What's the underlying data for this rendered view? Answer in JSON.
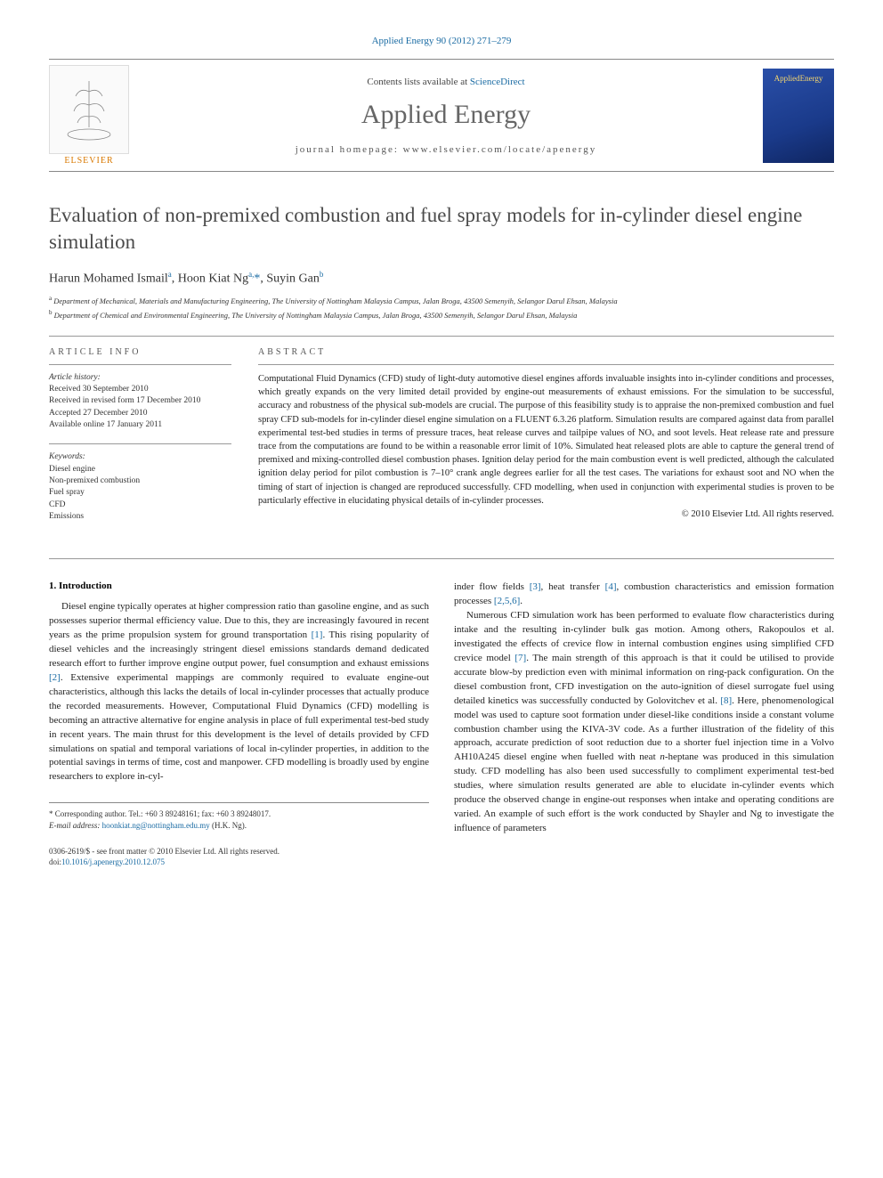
{
  "top_link": "Applied Energy 90 (2012) 271–279",
  "header": {
    "contents_prefix": "Contents lists available at ",
    "contents_link": "ScienceDirect",
    "journal_name": "Applied Energy",
    "homepage_prefix": "journal homepage: ",
    "homepage_url": "www.elsevier.com/locate/apenergy",
    "publisher_name": "ELSEVIER",
    "cover_text": "AppliedEnergy"
  },
  "article": {
    "title": "Evaluation of non-premixed combustion and fuel spray models for in-cylinder diesel engine simulation",
    "authors_html": "Harun Mohamed Ismail<sup>a</sup>, Hoon Kiat Ng<sup>a,</sup><span class=\"ast\">*</span>, Suyin Gan<sup>b</sup>",
    "affiliations": [
      {
        "marker": "a",
        "text": "Department of Mechanical, Materials and Manufacturing Engineering, The University of Nottingham Malaysia Campus, Jalan Broga, 43500 Semenyih, Selangor Darul Ehsan, Malaysia"
      },
      {
        "marker": "b",
        "text": "Department of Chemical and Environmental Engineering, The University of Nottingham Malaysia Campus, Jalan Broga, 43500 Semenyih, Selangor Darul Ehsan, Malaysia"
      }
    ]
  },
  "info": {
    "label": "ARTICLE INFO",
    "history_heading": "Article history:",
    "history": [
      "Received 30 September 2010",
      "Received in revised form 17 December 2010",
      "Accepted 27 December 2010",
      "Available online 17 January 2011"
    ],
    "keywords_heading": "Keywords:",
    "keywords": [
      "Diesel engine",
      "Non-premixed combustion",
      "Fuel spray",
      "CFD",
      "Emissions"
    ]
  },
  "abstract": {
    "label": "ABSTRACT",
    "text": "Computational Fluid Dynamics (CFD) study of light-duty automotive diesel engines affords invaluable insights into in-cylinder conditions and processes, which greatly expands on the very limited detail provided by engine-out measurements of exhaust emissions. For the simulation to be successful, accuracy and robustness of the physical sub-models are crucial. The purpose of this feasibility study is to appraise the non-premixed combustion and fuel spray CFD sub-models for in-cylinder diesel engine simulation on a FLUENT 6.3.26 platform. Simulation results are compared against data from parallel experimental test-bed studies in terms of pressure traces, heat release curves and tailpipe values of NOₓ and soot levels. Heat release rate and pressure trace from the computations are found to be within a reasonable error limit of 10%. Simulated heat released plots are able to capture the general trend of premixed and mixing-controlled diesel combustion phases. Ignition delay period for the main combustion event is well predicted, although the calculated ignition delay period for pilot combustion is 7–10° crank angle degrees earlier for all the test cases. The variations for exhaust soot and NO when the timing of start of injection is changed are reproduced successfully. CFD modelling, when used in conjunction with experimental studies is proven to be particularly effective in elucidating physical details of in-cylinder processes.",
    "copyright": "© 2010 Elsevier Ltd. All rights reserved."
  },
  "intro": {
    "heading": "1. Introduction",
    "left_para": "Diesel engine typically operates at higher compression ratio than gasoline engine, and as such possesses superior thermal efficiency value. Due to this, they are increasingly favoured in recent years as the prime propulsion system for ground transportation <a class=\"cite\">[1]</a>. This rising popularity of diesel vehicles and the increasingly stringent diesel emissions standards demand dedicated research effort to further improve engine output power, fuel consumption and exhaust emissions <a class=\"cite\">[2]</a>. Extensive experimental mappings are commonly required to evaluate engine-out characteristics, although this lacks the details of local in-cylinder processes that actually produce the recorded measurements. However, Computational Fluid Dynamics (CFD) modelling is becoming an attractive alternative for engine analysis in place of full experimental test-bed study in recent years. The main thrust for this development is the level of details provided by CFD simulations on spatial and temporal variations of local in-cylinder properties, in addition to the potential savings in terms of time, cost and manpower. CFD modelling is broadly used by engine researchers to explore in-cyl-",
    "right_top_para": "inder flow fields <a class=\"cite\">[3]</a>, heat transfer <a class=\"cite\">[4]</a>, combustion characteristics and emission formation processes <a class=\"cite\">[2,5,6]</a>.",
    "right_para": "Numerous CFD simulation work has been performed to evaluate flow characteristics during intake and the resulting in-cylinder bulk gas motion. Among others, Rakopoulos et al. investigated the effects of crevice flow in internal combustion engines using simplified CFD crevice model <a class=\"cite\">[7]</a>. The main strength of this approach is that it could be utilised to provide accurate blow-by prediction even with minimal information on ring-pack configuration. On the diesel combustion front, CFD investigation on the auto-ignition of diesel surrogate fuel using detailed kinetics was successfully conducted by Golovitchev et al. <a class=\"cite\">[8]</a>. Here, phenomenological model was used to capture soot formation under diesel-like conditions inside a constant volume combustion chamber using the KIVA-3V code. As a further illustration of the fidelity of this approach, accurate prediction of soot reduction due to a shorter fuel injection time in a Volvo AH10A245 diesel engine when fuelled with neat <em>n</em>-heptane was produced in this simulation study. CFD modelling has also been used successfully to compliment experimental test-bed studies, where simulation results generated are able to elucidate in-cylinder events which produce the observed change in engine-out responses when intake and operating conditions are varied. An example of such effort is the work conducted by Shayler and Ng to investigate the influence of parameters"
  },
  "footnotes": {
    "corr": "* Corresponding author. Tel.: +60 3 89248161; fax: +60 3 89248017.",
    "email_label": "E-mail address:",
    "email": "hoonkiat.ng@nottingham.edu.my",
    "email_suffix": "(H.K. Ng)."
  },
  "bottom": {
    "issn_line": "0306-2619/$ - see front matter © 2010 Elsevier Ltd. All rights reserved.",
    "doi_label": "doi:",
    "doi": "10.1016/j.apenergy.2010.12.075"
  },
  "colors": {
    "link": "#1a6ba3",
    "title_gray": "#4a4a4a",
    "publisher_orange": "#d97800"
  },
  "fonts": {
    "body_size_pt": 11,
    "abstract_size_pt": 10.5,
    "meta_size_pt": 9.5,
    "title_size_pt": 23,
    "journal_name_size_pt": 30
  }
}
